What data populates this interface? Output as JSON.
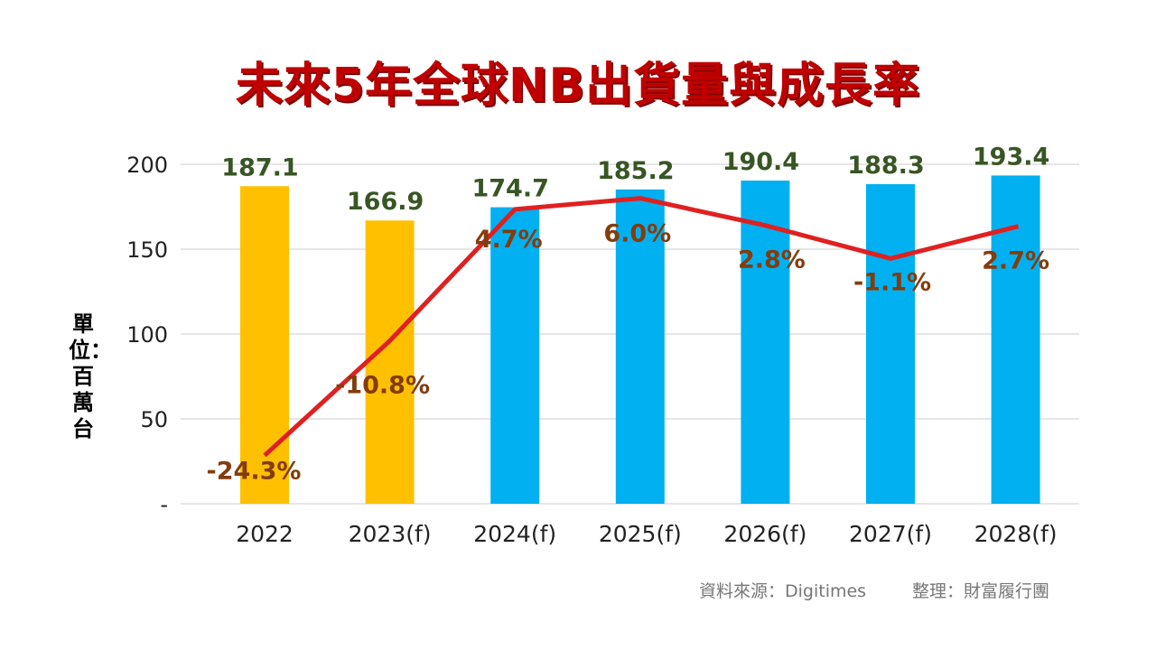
{
  "chart_data": {
    "type": "bar+line",
    "title": "未來5年全球NB出貨量與成長率",
    "ylabel": "單位：百萬台",
    "categories": [
      "2022",
      "2023(f)",
      "2024(f)",
      "2025(f)",
      "2026(f)",
      "2027(f)",
      "2028(f)"
    ],
    "yticks": [
      {
        "value": 0,
        "label": "-"
      },
      {
        "value": 50,
        "label": "50"
      },
      {
        "value": 100,
        "label": "100"
      },
      {
        "value": 150,
        "label": "150"
      },
      {
        "value": 200,
        "label": "200"
      }
    ],
    "ylim": [
      0,
      200
    ],
    "grid": true,
    "series": [
      {
        "kind": "bar",
        "values": [
          187.1,
          166.9,
          174.7,
          185.2,
          190.4,
          188.3,
          193.4
        ],
        "labels": [
          "187.1",
          "166.9",
          "174.7",
          "185.2",
          "190.4",
          "188.3",
          "193.4"
        ],
        "colors": [
          "#FFC000",
          "#FFC000",
          "#00B0F0",
          "#00B0F0",
          "#00B0F0",
          "#00B0F0",
          "#00B0F0"
        ]
      },
      {
        "kind": "line",
        "axis": "secondary",
        "color": "#E02020",
        "values": [
          -24.3,
          -10.8,
          4.7,
          6.0,
          2.8,
          -1.1,
          2.7
        ],
        "labels": [
          "-24.3%",
          "-10.8%",
          "4.7%",
          "6.0%",
          "2.8%",
          "-1.1%",
          "2.7%"
        ]
      }
    ],
    "y2lim": [
      -30,
      10
    ]
  },
  "footer": {
    "source": "資料來源：Digitimes",
    "organizer": "整理：財富履行團"
  }
}
